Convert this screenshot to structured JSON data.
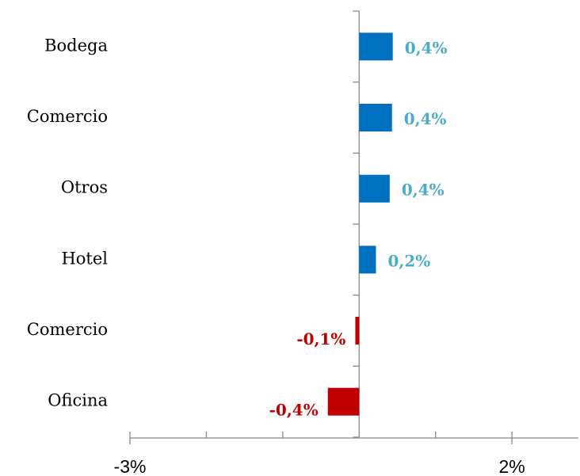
{
  "chart_data": {
    "type": "barh",
    "categories": [
      "Bodega",
      "Comercio",
      "Otros",
      "Hotel",
      "Comercio",
      "Oficina"
    ],
    "values": [
      0.44,
      0.43,
      0.4,
      0.22,
      -0.05,
      -0.41
    ],
    "value_labels": [
      "0,4%",
      "0,4%",
      "0,4%",
      "0,2%",
      "-0,1%",
      "-0,4%"
    ],
    "positive_color": "#0070c0",
    "negative_color": "#c00000",
    "positive_label_color": "#4bacc6",
    "negative_label_color": "#c00000",
    "xlim": [
      -3,
      2.87
    ],
    "xticks": [
      {
        "value": -3,
        "label": "-3%"
      },
      {
        "value": 2,
        "label": "2%"
      }
    ],
    "xminorticks": [
      -2,
      -1,
      1
    ]
  }
}
